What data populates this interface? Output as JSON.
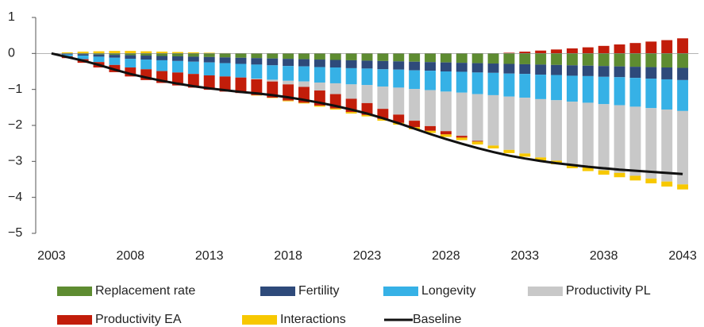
{
  "chart_data": {
    "type": "bar",
    "x": [
      2003,
      2004,
      2005,
      2006,
      2007,
      2008,
      2009,
      2010,
      2011,
      2012,
      2013,
      2014,
      2015,
      2016,
      2017,
      2018,
      2019,
      2020,
      2021,
      2022,
      2023,
      2024,
      2025,
      2026,
      2027,
      2028,
      2029,
      2030,
      2031,
      2032,
      2033,
      2034,
      2035,
      2036,
      2037,
      2038,
      2039,
      2040,
      2041,
      2042,
      2043
    ],
    "xlim": [
      2002,
      2044
    ],
    "xticks": [
      2003,
      2008,
      2013,
      2018,
      2023,
      2028,
      2033,
      2038,
      2043
    ],
    "ylim": [
      -5,
      1
    ],
    "yticks": [
      1,
      0,
      {
        "value": -1,
        "label": "−1"
      },
      {
        "value": -2,
        "label": "−2"
      },
      {
        "value": -3,
        "label": "−3"
      },
      {
        "value": -4,
        "label": "−4"
      },
      {
        "value": -5,
        "label": "−5"
      }
    ],
    "series": [
      {
        "name": "Replacement rate",
        "color": "#5e8c31",
        "values": [
          0,
          -0.01,
          -0.02,
          -0.03,
          -0.04,
          -0.05,
          -0.06,
          -0.07,
          -0.08,
          -0.09,
          -0.1,
          -0.11,
          -0.12,
          -0.13,
          -0.14,
          -0.15,
          -0.16,
          -0.17,
          -0.18,
          -0.19,
          -0.2,
          -0.21,
          -0.22,
          -0.23,
          -0.24,
          -0.25,
          -0.26,
          -0.27,
          -0.28,
          -0.29,
          -0.3,
          -0.31,
          -0.32,
          -0.33,
          -0.34,
          -0.35,
          -0.36,
          -0.37,
          -0.38,
          -0.39,
          -0.4
        ]
      },
      {
        "name": "Fertility",
        "color": "#2e4a7a",
        "values": [
          0,
          -0.02,
          -0.04,
          -0.06,
          -0.08,
          -0.1,
          -0.11,
          -0.12,
          -0.13,
          -0.14,
          -0.15,
          -0.16,
          -0.17,
          -0.18,
          -0.19,
          -0.2,
          -0.2,
          -0.21,
          -0.21,
          -0.22,
          -0.22,
          -0.23,
          -0.23,
          -0.24,
          -0.24,
          -0.25,
          -0.25,
          -0.26,
          -0.26,
          -0.27,
          -0.27,
          -0.28,
          -0.28,
          -0.29,
          -0.29,
          -0.3,
          -0.3,
          -0.31,
          -0.32,
          -0.33,
          -0.34
        ]
      },
      {
        "name": "Longevity",
        "color": "#36b1e6",
        "values": [
          0,
          -0.05,
          -0.1,
          -0.15,
          -0.2,
          -0.24,
          -0.27,
          -0.3,
          -0.32,
          -0.34,
          -0.36,
          -0.37,
          -0.38,
          -0.39,
          -0.4,
          -0.41,
          -0.42,
          -0.43,
          -0.44,
          -0.45,
          -0.46,
          -0.48,
          -0.5,
          -0.52,
          -0.54,
          -0.56,
          -0.58,
          -0.6,
          -0.62,
          -0.64,
          -0.66,
          -0.68,
          -0.7,
          -0.72,
          -0.74,
          -0.76,
          -0.78,
          -0.8,
          -0.82,
          -0.84,
          -0.86
        ]
      },
      {
        "name": "Productivity PL",
        "color": "#c8c8c8",
        "values": [
          0,
          0,
          0,
          0,
          0,
          0,
          0,
          0,
          0,
          0,
          0,
          0,
          0,
          -0.02,
          -0.05,
          -0.1,
          -0.15,
          -0.22,
          -0.3,
          -0.4,
          -0.5,
          -0.62,
          -0.75,
          -0.88,
          -1.0,
          -1.1,
          -1.2,
          -1.3,
          -1.4,
          -1.48,
          -1.55,
          -1.62,
          -1.68,
          -1.74,
          -1.79,
          -1.84,
          -1.88,
          -1.92,
          -1.96,
          -2.0,
          -2.04
        ]
      },
      {
        "name": "Productivity EA",
        "color": "#c21d0a",
        "values": [
          0,
          -0.05,
          -0.1,
          -0.15,
          -0.2,
          -0.25,
          -0.3,
          -0.33,
          -0.36,
          -0.38,
          -0.4,
          -0.42,
          -0.43,
          -0.44,
          -0.45,
          -0.45,
          -0.44,
          -0.42,
          -0.4,
          -0.37,
          -0.33,
          -0.28,
          -0.23,
          -0.18,
          -0.13,
          -0.09,
          -0.05,
          -0.02,
          0,
          0.02,
          0.05,
          0.08,
          0.11,
          0.14,
          0.17,
          0.21,
          0.25,
          0.29,
          0.33,
          0.37,
          0.42
        ]
      },
      {
        "name": "Interactions",
        "color": "#f7c800",
        "values": [
          0,
          0.03,
          0.05,
          0.06,
          0.07,
          0.07,
          0.06,
          0.05,
          0.04,
          0.03,
          0.02,
          0.01,
          0,
          -0.01,
          -0.01,
          -0.02,
          -0.02,
          -0.03,
          -0.03,
          -0.04,
          -0.04,
          -0.05,
          -0.05,
          -0.06,
          -0.06,
          -0.07,
          -0.07,
          -0.08,
          -0.08,
          -0.09,
          -0.09,
          -0.1,
          -0.1,
          -0.11,
          -0.11,
          -0.12,
          -0.12,
          -0.13,
          -0.13,
          -0.14,
          -0.14
        ]
      },
      {
        "name": "Baseline",
        "color": "#111111",
        "type": "line",
        "values": [
          0,
          -0.1,
          -0.2,
          -0.32,
          -0.45,
          -0.57,
          -0.67,
          -0.76,
          -0.84,
          -0.91,
          -0.97,
          -1.02,
          -1.07,
          -1.11,
          -1.16,
          -1.22,
          -1.29,
          -1.37,
          -1.46,
          -1.56,
          -1.67,
          -1.8,
          -1.94,
          -2.09,
          -2.24,
          -2.38,
          -2.51,
          -2.63,
          -2.74,
          -2.84,
          -2.92,
          -2.99,
          -3.05,
          -3.1,
          -3.15,
          -3.19,
          -3.23,
          -3.26,
          -3.29,
          -3.32,
          -3.35
        ]
      }
    ]
  }
}
